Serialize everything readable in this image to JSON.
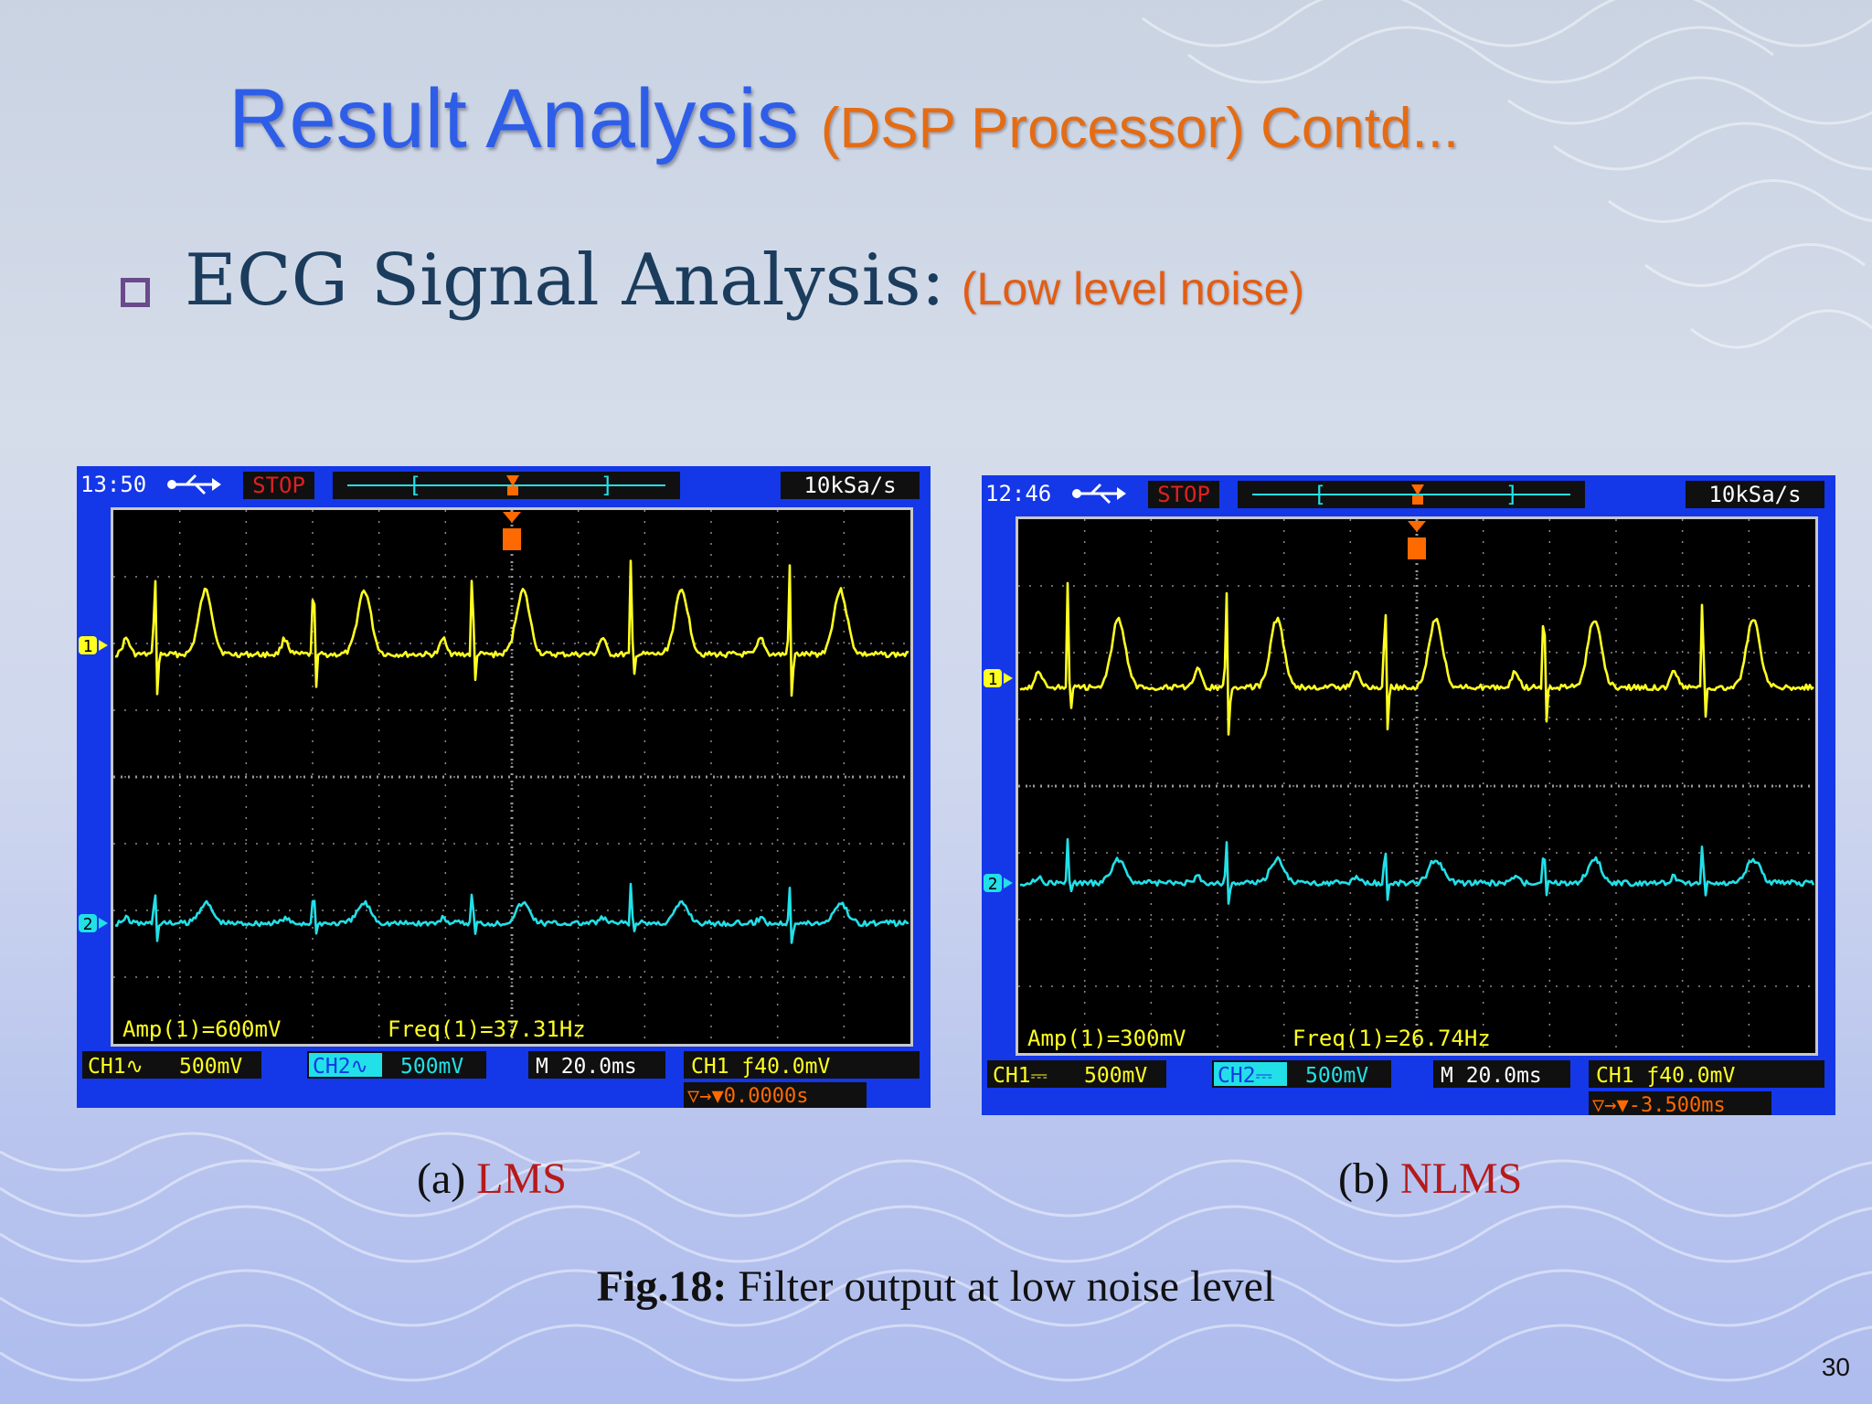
{
  "slide": {
    "title_main": "Result Analysis",
    "title_sub": "(DSP Processor) Contd...",
    "bullet_text": "ECG Signal Analysis:",
    "bullet_note": "(Low level noise)",
    "figure_label": "Fig.18:",
    "figure_text": " Filter output at low noise level",
    "page_number": "30"
  },
  "scopes": [
    {
      "caption_prefix": "(a) ",
      "caption_name": "LMS",
      "time": "13:50",
      "stop": "STOP",
      "sample_rate": "10kSa/s",
      "ch1_marker": "1",
      "ch2_marker": "2",
      "amp": "Amp(1)=600mV",
      "freq": "Freq(1)=37.31Hz",
      "ch1": "CH1∿",
      "ch1_val": "500mV",
      "ch2": "CH2∿",
      "ch2_val": "500mV",
      "timebase": "M 20.0ms",
      "trigger": "CH1 ƒ40.0mV",
      "delay": "▽→▼0.0000s"
    },
    {
      "caption_prefix": "(b) ",
      "caption_name": "NLMS",
      "time": "12:46",
      "stop": "STOP",
      "sample_rate": "10kSa/s",
      "ch1_marker": "1",
      "ch2_marker": "2",
      "amp": "Amp(1)=300mV",
      "freq": "Freq(1)=26.74Hz",
      "ch1": "CH1⎓",
      "ch1_val": "500mV",
      "ch2": "CH2⎓",
      "ch2_val": "500mV",
      "timebase": "M 20.0ms",
      "trigger": "CH1 ƒ40.0mV",
      "delay": "▽→▼-3.500ms"
    }
  ],
  "colors": {
    "ch1_trace": "#ffff22",
    "ch2_trace": "#22e0e8",
    "stop_badge": "#e02020",
    "trigger_marker": "#ff6a00",
    "frame": "#1437e8"
  },
  "icons": [
    "usb-icon",
    "trigger-marker-icon",
    "square-bullet-icon"
  ]
}
